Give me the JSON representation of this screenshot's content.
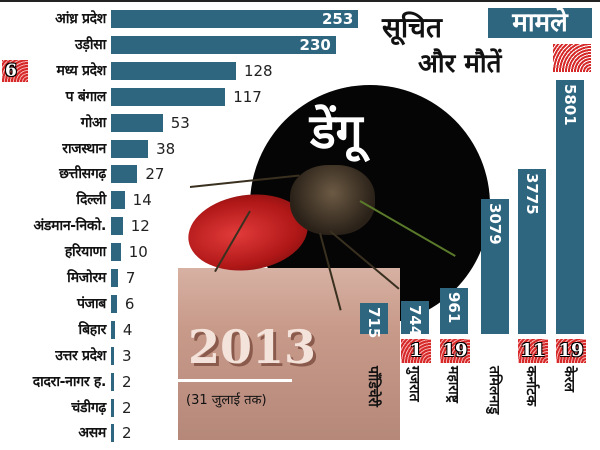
{
  "title": "डेंगू",
  "legend": {
    "cases_prefix": "सूचित",
    "cases_label": "मामले",
    "deaths_label": "और मौतें",
    "cases_color": "#2e6680",
    "deaths_color": "#d62a2a"
  },
  "year": "2013",
  "subtitle": "(31 जुलाई तक)",
  "horizontal": [
    {
      "state": "आंध्र प्रदेश",
      "cases": 253,
      "deaths": null
    },
    {
      "state": "उड़ीसा",
      "cases": 230,
      "deaths": null
    },
    {
      "state": "मध्य प्रदेश",
      "cases": 128,
      "deaths": 6
    },
    {
      "state": "प बंगाल",
      "cases": 117,
      "deaths": null
    },
    {
      "state": "गोआ",
      "cases": 53,
      "deaths": null
    },
    {
      "state": "राजस्थान",
      "cases": 38,
      "deaths": null
    },
    {
      "state": "छत्तीसगढ़",
      "cases": 27,
      "deaths": null
    },
    {
      "state": "दिल्ली",
      "cases": 14,
      "deaths": null
    },
    {
      "state": "अंडमान-निको.",
      "cases": 12,
      "deaths": null
    },
    {
      "state": "हरियाणा",
      "cases": 10,
      "deaths": null
    },
    {
      "state": "मिजोरम",
      "cases": 7,
      "deaths": null
    },
    {
      "state": "पंजाब",
      "cases": 6,
      "deaths": null
    },
    {
      "state": "बिहार",
      "cases": 4,
      "deaths": null
    },
    {
      "state": "उत्तर प्रदेश",
      "cases": 3,
      "deaths": null
    },
    {
      "state": "दादरा-नागर ह.",
      "cases": 2,
      "deaths": null
    },
    {
      "state": "चंडीगढ़",
      "cases": 2,
      "deaths": null
    },
    {
      "state": "असम",
      "cases": 2,
      "deaths": null
    }
  ],
  "vertical": [
    {
      "state": "पॉंडिचेरी",
      "cases": 715,
      "deaths": null
    },
    {
      "state": "गुजरात",
      "cases": 744,
      "deaths": 1
    },
    {
      "state": "महाराष्ट्र",
      "cases": 961,
      "deaths": 19
    },
    {
      "state": "तमिलनाडु",
      "cases": 3079,
      "deaths": null
    },
    {
      "state": "कर्नाटक",
      "cases": 3775,
      "deaths": 11
    },
    {
      "state": "केरल",
      "cases": 5801,
      "deaths": 19
    }
  ],
  "chart_data": {
    "type": "bar",
    "title": "डेंगू — सूचित मामले और मौतें",
    "subtitle": "2013 (31 जुलाई तक)",
    "categories": [
      "आंध्र प्रदेश",
      "उड़ीसा",
      "मध्य प्रदेश",
      "प बंगाल",
      "गोआ",
      "राजस्थान",
      "छत्तीसगढ़",
      "दिल्ली",
      "अंडमान-निको.",
      "हरियाणा",
      "मिजोरम",
      "पंजाब",
      "बिहार",
      "उत्तर प्रदेश",
      "दादरा-नागर ह.",
      "चंडीगढ़",
      "असम",
      "पॉंडिचेरी",
      "गुजरात",
      "महाराष्ट्र",
      "तमिलनाडु",
      "कर्नाटक",
      "केरल"
    ],
    "series": [
      {
        "name": "सूचित मामले",
        "values": [
          253,
          230,
          128,
          117,
          53,
          38,
          27,
          14,
          12,
          10,
          7,
          6,
          4,
          3,
          2,
          2,
          2,
          715,
          744,
          961,
          3079,
          3775,
          5801
        ]
      },
      {
        "name": "मौतें",
        "values": [
          null,
          null,
          6,
          null,
          null,
          null,
          null,
          null,
          null,
          null,
          null,
          null,
          null,
          null,
          null,
          null,
          null,
          null,
          1,
          19,
          null,
          11,
          19
        ]
      }
    ],
    "xlabel": "",
    "ylabel": "",
    "grid": false,
    "legend_position": "top-right"
  }
}
